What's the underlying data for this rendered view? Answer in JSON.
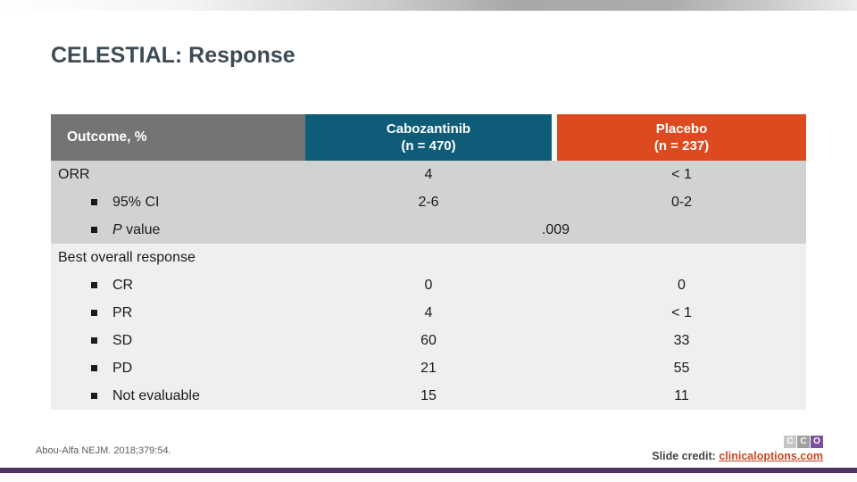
{
  "title": "CELESTIAL: Response",
  "table": {
    "header": {
      "outcome_label": "Outcome, %",
      "col1_name": "Cabozantinib",
      "col1_n": "(n = 470)",
      "col2_name": "Placebo",
      "col2_n": "(n = 237)"
    },
    "rows": [
      {
        "label": "ORR",
        "v1": "4",
        "v2": "< 1"
      },
      {
        "label": "95% CI",
        "v1": "2-6",
        "v2": "0-2"
      },
      {
        "label_italic": "P",
        "label_rest": " value",
        "merged": ".009"
      },
      {
        "label": "Best overall response"
      },
      {
        "label": "CR",
        "v1": "0",
        "v2": "0"
      },
      {
        "label": "PR",
        "v1": "4",
        "v2": "< 1"
      },
      {
        "label": "SD",
        "v1": "60",
        "v2": "33"
      },
      {
        "label": "PD",
        "v1": "21",
        "v2": "55"
      },
      {
        "label": "Not evaluable",
        "v1": "15",
        "v2": "11"
      }
    ]
  },
  "chart_data": {
    "type": "table",
    "title": "CELESTIAL: Response",
    "columns": [
      "Outcome, %",
      "Cabozantinib (n = 470)",
      "Placebo (n = 237)"
    ],
    "rows": [
      [
        "ORR",
        "4",
        "< 1"
      ],
      [
        "95% CI",
        "2-6",
        "0-2"
      ],
      [
        "P value",
        ".009",
        ".009"
      ],
      [
        "Best overall response",
        "",
        ""
      ],
      [
        "CR",
        "0",
        "0"
      ],
      [
        "PR",
        "4",
        "< 1"
      ],
      [
        "SD",
        "60",
        "33"
      ],
      [
        "PD",
        "21",
        "55"
      ],
      [
        "Not evaluable",
        "15",
        "11"
      ]
    ]
  },
  "footer": {
    "reference": "Abou-Alfa NEJM. 2018;379:54.",
    "credit_label": "Slide credit: ",
    "credit_link": "clinicaloptions.com",
    "logo": {
      "letter1": "C",
      "letter2": "C",
      "letter3": "O"
    }
  },
  "colors": {
    "header_gray": "#747474",
    "cabozantinib_teal": "#0f5c78",
    "placebo_orange": "#dd4a20",
    "band_dark": "#d2d2d2",
    "band_light": "#efeff0",
    "bottom_bar_purple": "#4d3463",
    "link_orange": "#c7481f",
    "title_color": "#3d4b55",
    "logo_purple": "#7d4f9f"
  }
}
